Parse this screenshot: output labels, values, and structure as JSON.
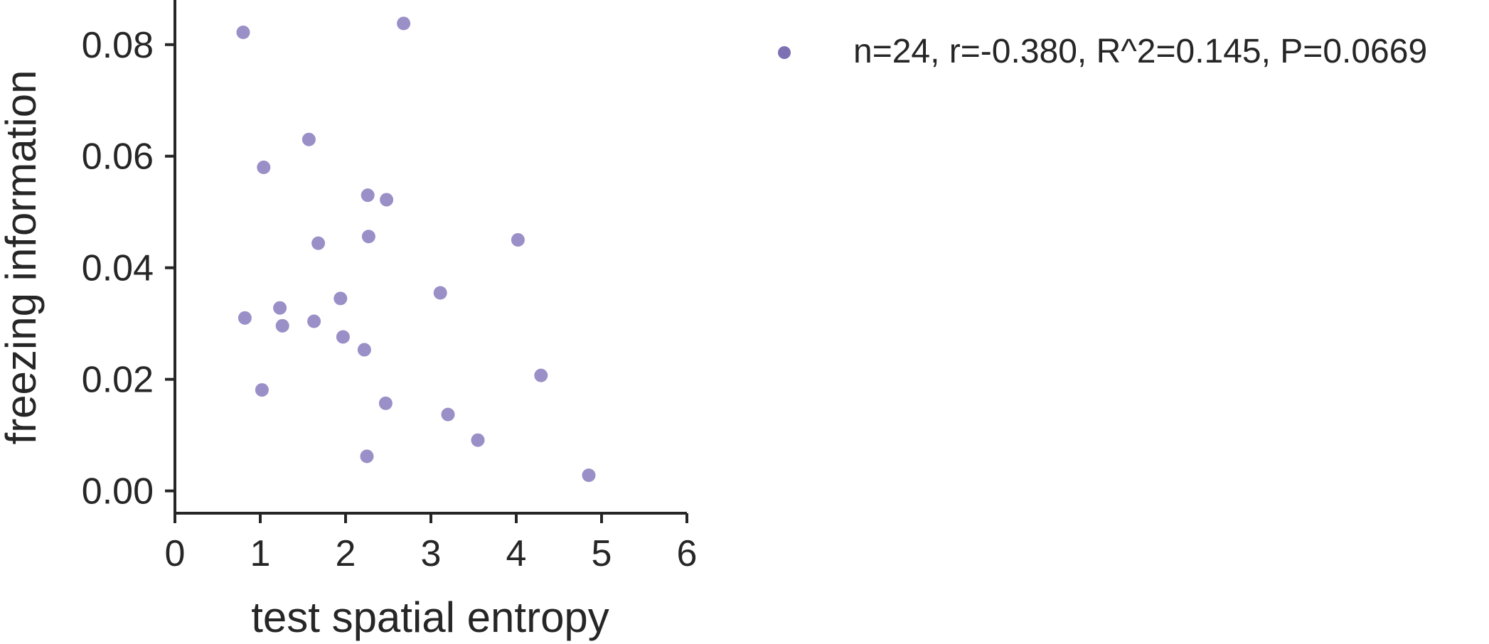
{
  "chart_data": {
    "type": "scatter",
    "xlabel": "test spatial entropy",
    "ylabel": "freezing information",
    "xlim": [
      0,
      6
    ],
    "ylim": [
      -0.004,
      0.088
    ],
    "x_ticks": [
      "0",
      "1",
      "2",
      "3",
      "4",
      "5",
      "6"
    ],
    "y_ticks": [
      "0.00",
      "0.02",
      "0.04",
      "0.06",
      "0.08"
    ],
    "grid": false,
    "legend_position": "top-right outside plot",
    "series": [
      {
        "name": "n=24, r=-0.380, R^2=0.145, P=0.0669",
        "color": "#9a8fc7",
        "points": [
          {
            "x": 0.8,
            "y": 0.0822
          },
          {
            "x": 2.68,
            "y": 0.0838
          },
          {
            "x": 1.57,
            "y": 0.063
          },
          {
            "x": 1.04,
            "y": 0.058
          },
          {
            "x": 2.26,
            "y": 0.053
          },
          {
            "x": 2.48,
            "y": 0.0522
          },
          {
            "x": 2.27,
            "y": 0.0456
          },
          {
            "x": 1.68,
            "y": 0.0444
          },
          {
            "x": 4.02,
            "y": 0.045
          },
          {
            "x": 3.11,
            "y": 0.0355
          },
          {
            "x": 1.94,
            "y": 0.0345
          },
          {
            "x": 1.23,
            "y": 0.0328
          },
          {
            "x": 0.82,
            "y": 0.031
          },
          {
            "x": 1.63,
            "y": 0.0304
          },
          {
            "x": 1.26,
            "y": 0.0296
          },
          {
            "x": 1.97,
            "y": 0.0276
          },
          {
            "x": 2.22,
            "y": 0.0253
          },
          {
            "x": 4.29,
            "y": 0.0207
          },
          {
            "x": 1.02,
            "y": 0.0181
          },
          {
            "x": 2.47,
            "y": 0.0157
          },
          {
            "x": 3.2,
            "y": 0.0137
          },
          {
            "x": 3.55,
            "y": 0.0091
          },
          {
            "x": 2.25,
            "y": 0.0062
          },
          {
            "x": 4.85,
            "y": 0.0028
          }
        ]
      }
    ]
  }
}
